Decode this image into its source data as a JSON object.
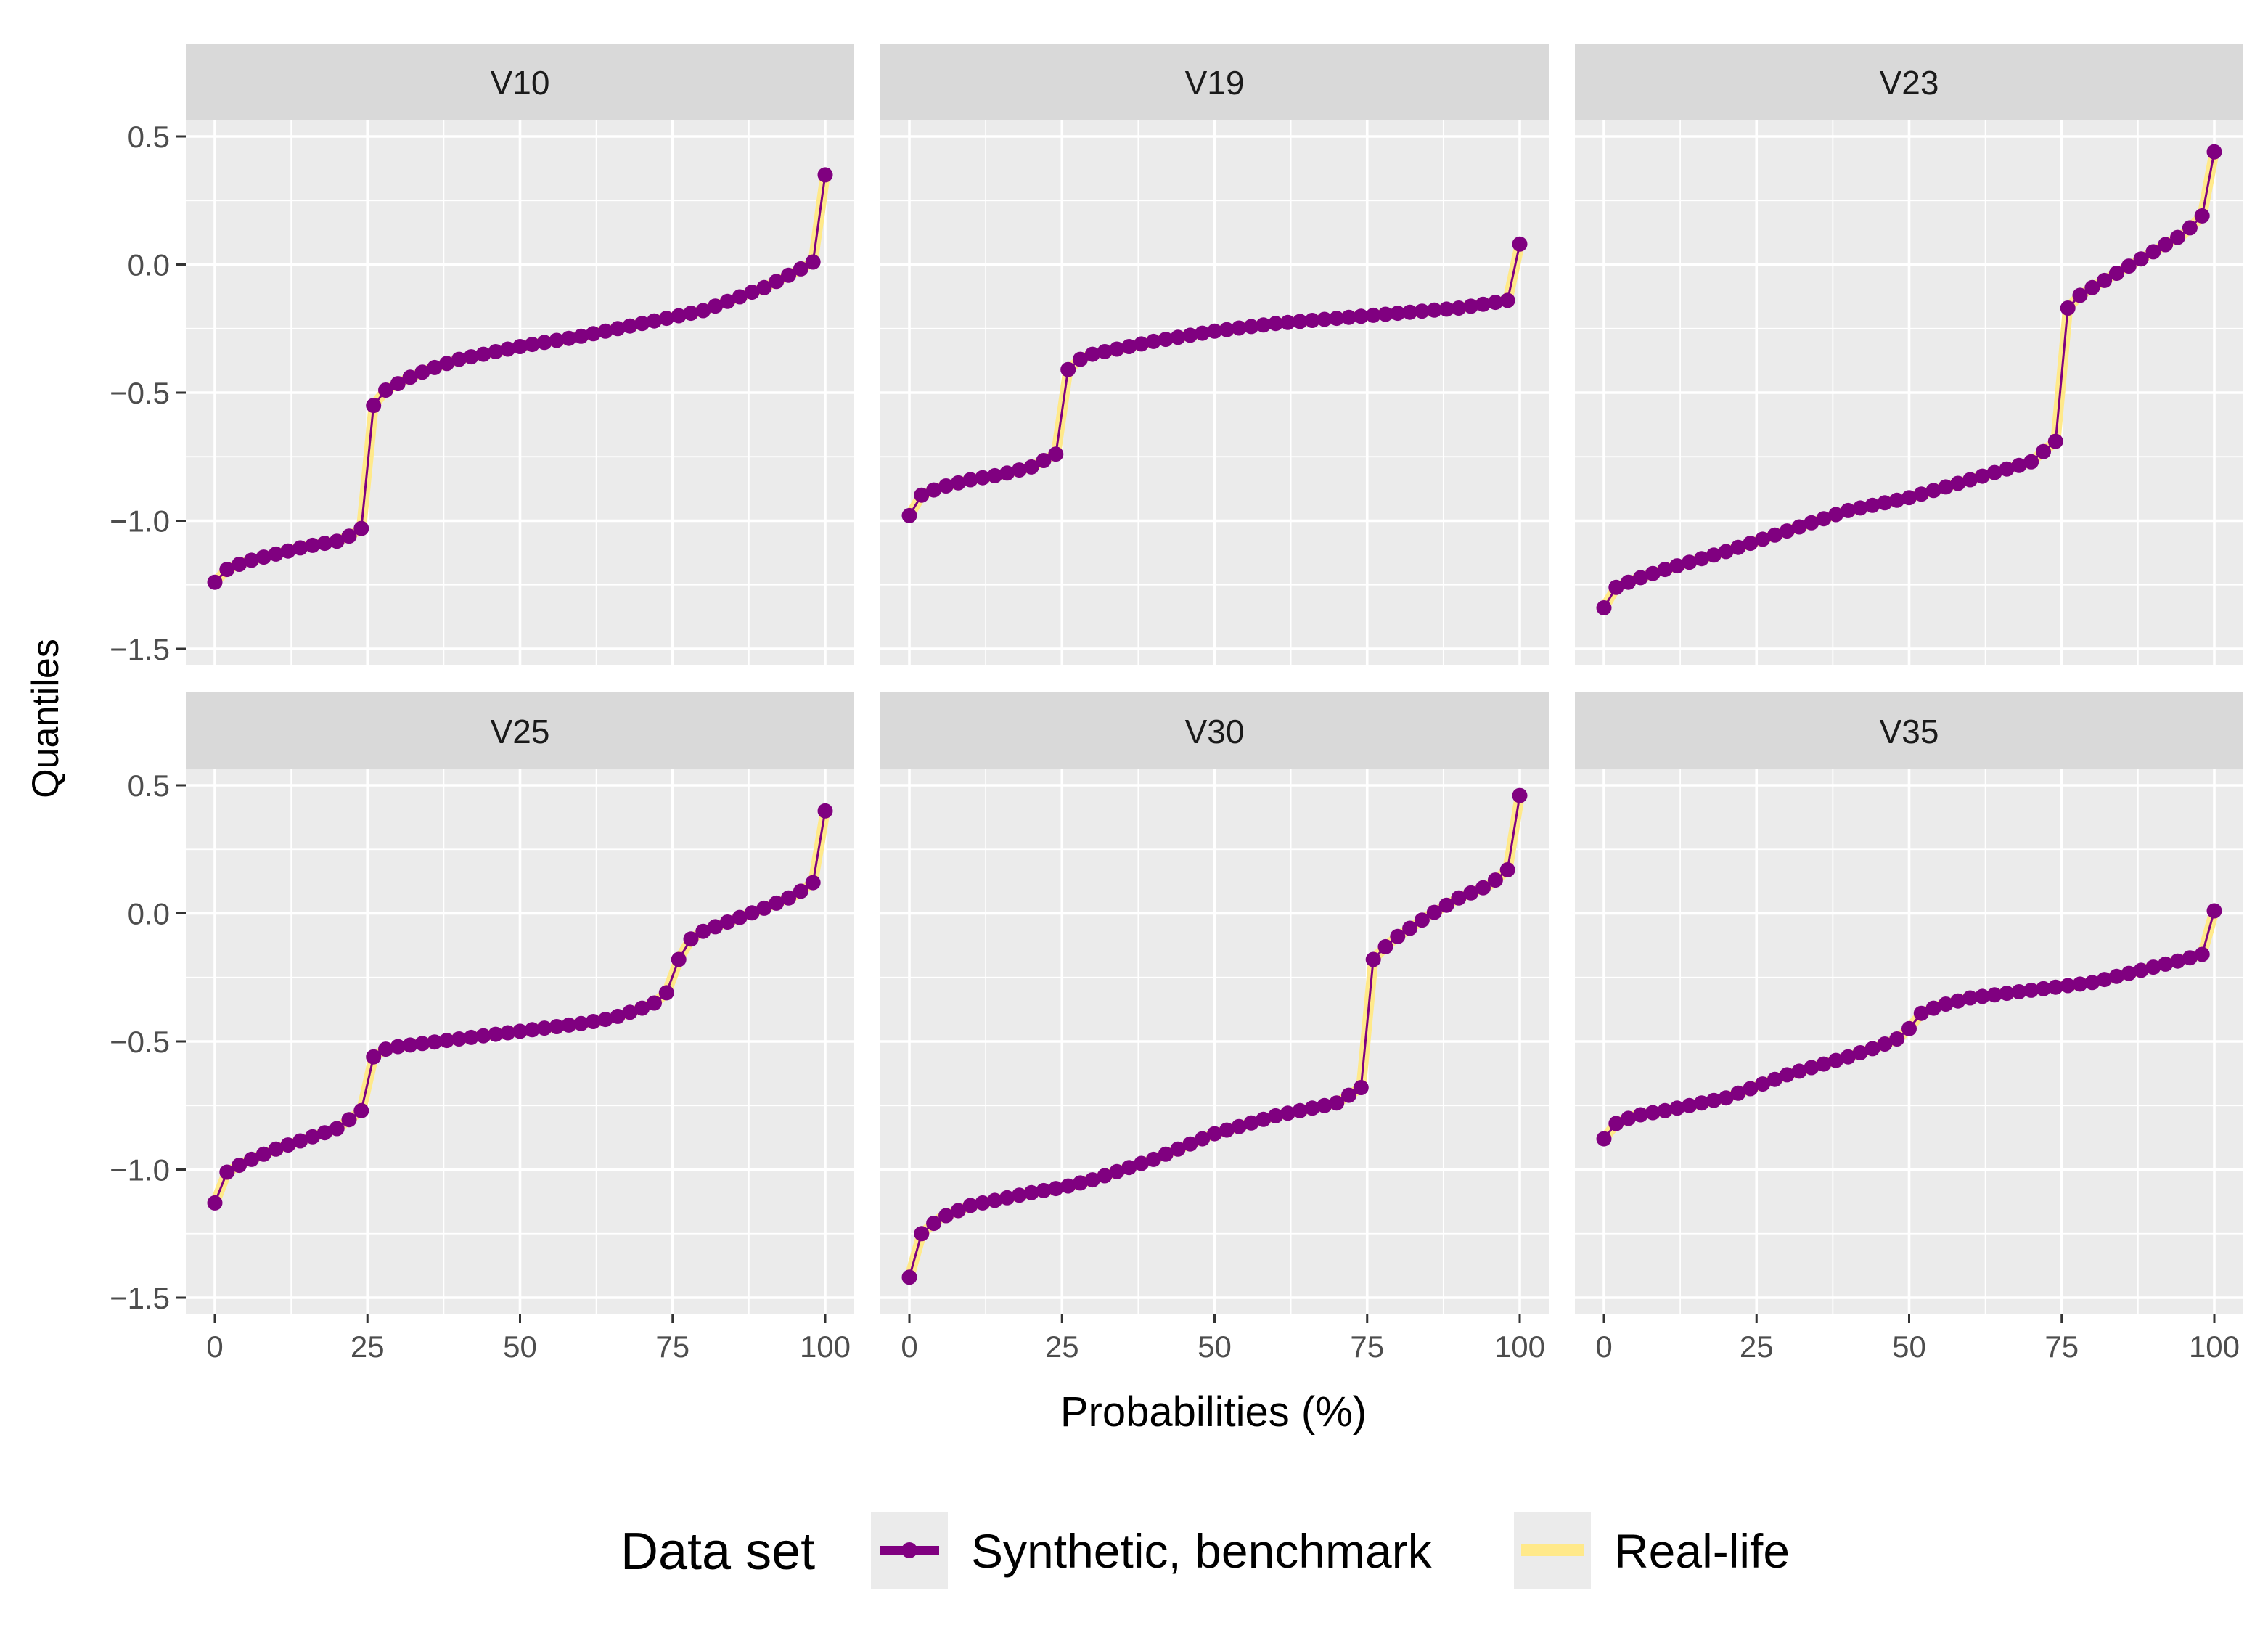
{
  "chart_data": {
    "type": "line",
    "ylabel": "Quantiles",
    "xlabel": "Probabilities (%)",
    "xlim": [
      0,
      100
    ],
    "ylim": [
      -1.5,
      0.5
    ],
    "x_ticks": [
      0,
      25,
      50,
      75,
      100
    ],
    "x_tick_labels": [
      "0",
      "25",
      "50",
      "75",
      "100"
    ],
    "y_ticks": [
      -1.5,
      -1.0,
      -0.5,
      0.0,
      0.5
    ],
    "y_tick_labels": [
      "−1.5",
      "−1.0",
      "−0.5",
      "0.0",
      "0.5"
    ],
    "grid": true,
    "legend": {
      "title": "Data set",
      "position": "bottom",
      "entries": [
        {
          "name": "Synthetic, benchmark",
          "color": "#800080"
        },
        {
          "name": "Real-life",
          "color": "#FFE98A"
        }
      ]
    },
    "colors": {
      "synthetic": "#800080",
      "real": "#FFE98A",
      "panel_bg": "#EBEBEB",
      "strip_bg": "#D9D9D9",
      "grid": "#FFFFFF"
    },
    "panels": [
      {
        "name": "V10",
        "knots": [
          [
            0,
            -1.24
          ],
          [
            2,
            -1.19
          ],
          [
            5,
            -1.16
          ],
          [
            10,
            -1.13
          ],
          [
            15,
            -1.1
          ],
          [
            20,
            -1.08
          ],
          [
            22,
            -1.06
          ],
          [
            24,
            -1.03
          ],
          [
            26,
            -0.55
          ],
          [
            28,
            -0.49
          ],
          [
            32,
            -0.44
          ],
          [
            35,
            -0.41
          ],
          [
            40,
            -0.37
          ],
          [
            50,
            -0.32
          ],
          [
            60,
            -0.28
          ],
          [
            70,
            -0.23
          ],
          [
            80,
            -0.18
          ],
          [
            90,
            -0.09
          ],
          [
            95,
            -0.03
          ],
          [
            98,
            0.01
          ],
          [
            100,
            0.35
          ]
        ]
      },
      {
        "name": "V19",
        "knots": [
          [
            0,
            -0.98
          ],
          [
            2,
            -0.9
          ],
          [
            5,
            -0.87
          ],
          [
            10,
            -0.84
          ],
          [
            15,
            -0.82
          ],
          [
            20,
            -0.79
          ],
          [
            24,
            -0.74
          ],
          [
            26,
            -0.41
          ],
          [
            28,
            -0.37
          ],
          [
            30,
            -0.35
          ],
          [
            40,
            -0.3
          ],
          [
            50,
            -0.26
          ],
          [
            60,
            -0.23
          ],
          [
            70,
            -0.21
          ],
          [
            80,
            -0.19
          ],
          [
            90,
            -0.17
          ],
          [
            98,
            -0.14
          ],
          [
            100,
            0.08
          ]
        ]
      },
      {
        "name": "V23",
        "knots": [
          [
            0,
            -1.34
          ],
          [
            2,
            -1.26
          ],
          [
            5,
            -1.23
          ],
          [
            10,
            -1.19
          ],
          [
            20,
            -1.12
          ],
          [
            30,
            -1.04
          ],
          [
            40,
            -0.96
          ],
          [
            50,
            -0.91
          ],
          [
            60,
            -0.84
          ],
          [
            70,
            -0.77
          ],
          [
            74,
            -0.69
          ],
          [
            76,
            -0.17
          ],
          [
            78,
            -0.12
          ],
          [
            80,
            -0.09
          ],
          [
            85,
            -0.02
          ],
          [
            90,
            0.05
          ],
          [
            95,
            0.12
          ],
          [
            98,
            0.19
          ],
          [
            100,
            0.44
          ]
        ]
      },
      {
        "name": "V25",
        "knots": [
          [
            0,
            -1.13
          ],
          [
            2,
            -1.01
          ],
          [
            5,
            -0.97
          ],
          [
            10,
            -0.92
          ],
          [
            15,
            -0.88
          ],
          [
            20,
            -0.84
          ],
          [
            24,
            -0.77
          ],
          [
            26,
            -0.56
          ],
          [
            28,
            -0.53
          ],
          [
            30,
            -0.52
          ],
          [
            40,
            -0.49
          ],
          [
            50,
            -0.46
          ],
          [
            60,
            -0.43
          ],
          [
            65,
            -0.41
          ],
          [
            70,
            -0.37
          ],
          [
            72,
            -0.35
          ],
          [
            74,
            -0.31
          ],
          [
            76,
            -0.18
          ],
          [
            78,
            -0.1
          ],
          [
            80,
            -0.07
          ],
          [
            90,
            0.02
          ],
          [
            95,
            0.07
          ],
          [
            98,
            0.12
          ],
          [
            100,
            0.4
          ]
        ]
      },
      {
        "name": "V30",
        "knots": [
          [
            0,
            -1.42
          ],
          [
            2,
            -1.25
          ],
          [
            5,
            -1.19
          ],
          [
            10,
            -1.14
          ],
          [
            20,
            -1.09
          ],
          [
            25,
            -1.07
          ],
          [
            30,
            -1.04
          ],
          [
            40,
            -0.96
          ],
          [
            50,
            -0.86
          ],
          [
            60,
            -0.79
          ],
          [
            70,
            -0.74
          ],
          [
            74,
            -0.68
          ],
          [
            76,
            -0.18
          ],
          [
            78,
            -0.13
          ],
          [
            80,
            -0.09
          ],
          [
            85,
            -0.01
          ],
          [
            90,
            0.06
          ],
          [
            95,
            0.11
          ],
          [
            98,
            0.17
          ],
          [
            100,
            0.46
          ]
        ]
      },
      {
        "name": "V35",
        "knots": [
          [
            0,
            -0.88
          ],
          [
            2,
            -0.82
          ],
          [
            5,
            -0.79
          ],
          [
            10,
            -0.77
          ],
          [
            20,
            -0.72
          ],
          [
            30,
            -0.63
          ],
          [
            40,
            -0.56
          ],
          [
            45,
            -0.52
          ],
          [
            48,
            -0.49
          ],
          [
            50,
            -0.45
          ],
          [
            52,
            -0.39
          ],
          [
            55,
            -0.36
          ],
          [
            60,
            -0.33
          ],
          [
            70,
            -0.3
          ],
          [
            80,
            -0.27
          ],
          [
            90,
            -0.21
          ],
          [
            95,
            -0.18
          ],
          [
            98,
            -0.16
          ],
          [
            100,
            0.01
          ]
        ]
      }
    ]
  }
}
